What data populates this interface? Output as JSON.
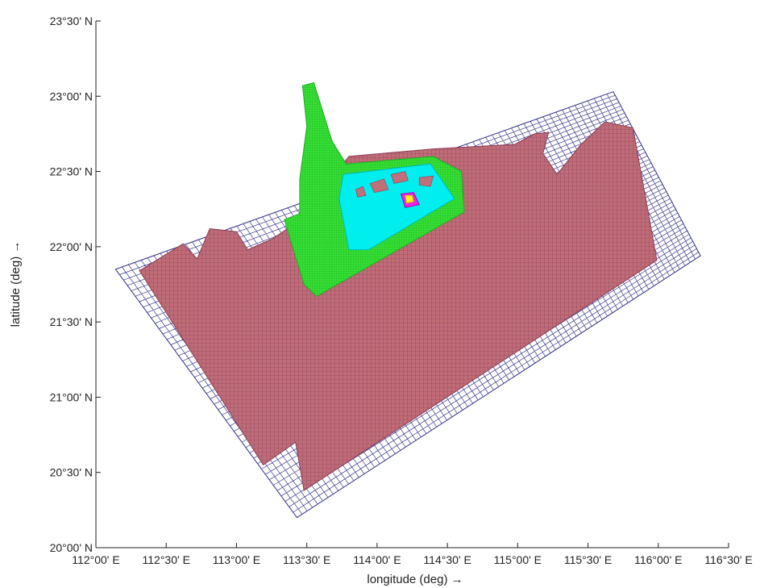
{
  "chart_data": {
    "type": "map",
    "xlabel": "longitude (deg) →",
    "ylabel": "latitude (deg) →",
    "xlim": [
      112.0,
      116.5
    ],
    "ylim": [
      20.0,
      23.5
    ],
    "x_ticks": [
      {
        "value": 112.0,
        "label": "112°00' E"
      },
      {
        "value": 112.5,
        "label": "112°30' E"
      },
      {
        "value": 113.0,
        "label": "113°00' E"
      },
      {
        "value": 113.5,
        "label": "113°30' E"
      },
      {
        "value": 114.0,
        "label": "114°00' E"
      },
      {
        "value": 114.5,
        "label": "114°30' E"
      },
      {
        "value": 115.0,
        "label": "115°00' E"
      },
      {
        "value": 115.5,
        "label": "115°30' E"
      },
      {
        "value": 116.0,
        "label": "116°00' E"
      },
      {
        "value": 116.5,
        "label": "116°30' E"
      }
    ],
    "y_ticks": [
      {
        "value": 20.0,
        "label": "20°00' N"
      },
      {
        "value": 20.5,
        "label": "20°30' N"
      },
      {
        "value": 21.0,
        "label": "21°00' N"
      },
      {
        "value": 21.5,
        "label": "21°30' N"
      },
      {
        "value": 22.0,
        "label": "22°00' N"
      },
      {
        "value": 22.5,
        "label": "22°30' N"
      },
      {
        "value": 23.0,
        "label": "23°00' N"
      },
      {
        "value": 23.5,
        "label": "23°30' N"
      }
    ],
    "grid": false,
    "domains": [
      {
        "name": "outer-grid",
        "fill": "none",
        "stroke": "#3a3a8c",
        "corners": [
          [
            112.14,
            21.85
          ],
          [
            115.68,
            23.03
          ],
          [
            116.3,
            21.94
          ],
          [
            113.43,
            20.2
          ]
        ]
      },
      {
        "name": "coarse-domain",
        "fill": "#b8606a",
        "stroke": "#8a3e58",
        "outline": [
          [
            112.31,
            21.84
          ],
          [
            112.62,
            22.02
          ],
          [
            112.72,
            21.92
          ],
          [
            112.81,
            22.12
          ],
          [
            113.0,
            22.1
          ],
          [
            113.08,
            21.98
          ],
          [
            113.25,
            22.05
          ],
          [
            113.41,
            22.15
          ],
          [
            113.8,
            22.6
          ],
          [
            114.4,
            22.65
          ],
          [
            114.98,
            22.68
          ],
          [
            115.12,
            22.75
          ],
          [
            115.22,
            22.76
          ],
          [
            115.18,
            22.62
          ],
          [
            115.28,
            22.48
          ],
          [
            115.45,
            22.68
          ],
          [
            115.62,
            22.83
          ],
          [
            115.82,
            22.79
          ],
          [
            115.99,
            21.91
          ],
          [
            113.48,
            20.38
          ],
          [
            113.42,
            20.7
          ],
          [
            113.19,
            20.55
          ]
        ]
      },
      {
        "name": "nested-domain",
        "fill": "#33dd33",
        "stroke": "#22aa22",
        "outline": [
          [
            113.34,
            22.18
          ],
          [
            113.45,
            22.22
          ],
          [
            113.45,
            22.45
          ],
          [
            113.5,
            22.8
          ],
          [
            113.47,
            23.07
          ],
          [
            113.55,
            23.09
          ],
          [
            113.68,
            22.7
          ],
          [
            113.78,
            22.55
          ],
          [
            114.4,
            22.6
          ],
          [
            114.6,
            22.5
          ],
          [
            114.62,
            22.23
          ],
          [
            113.57,
            21.67
          ],
          [
            113.48,
            21.75
          ]
        ]
      },
      {
        "name": "inner-domain",
        "fill": "#00eeee",
        "stroke": "#00bbbb",
        "outline": [
          [
            113.76,
            22.48
          ],
          [
            114.38,
            22.55
          ],
          [
            114.55,
            22.32
          ],
          [
            113.94,
            21.98
          ],
          [
            113.8,
            21.98
          ],
          [
            113.73,
            22.32
          ]
        ]
      },
      {
        "name": "finest-domain",
        "fill": "#ee22ee",
        "stroke": "#aa00aa",
        "outline": [
          [
            114.17,
            22.35
          ],
          [
            114.26,
            22.36
          ],
          [
            114.3,
            22.28
          ],
          [
            114.2,
            22.26
          ]
        ]
      },
      {
        "name": "finest-domain-core",
        "fill": "#ffee22",
        "stroke": "#ccbb00",
        "outline": [
          [
            114.2,
            22.34
          ],
          [
            114.25,
            22.34
          ],
          [
            114.26,
            22.3
          ],
          [
            114.21,
            22.29
          ]
        ]
      }
    ]
  }
}
